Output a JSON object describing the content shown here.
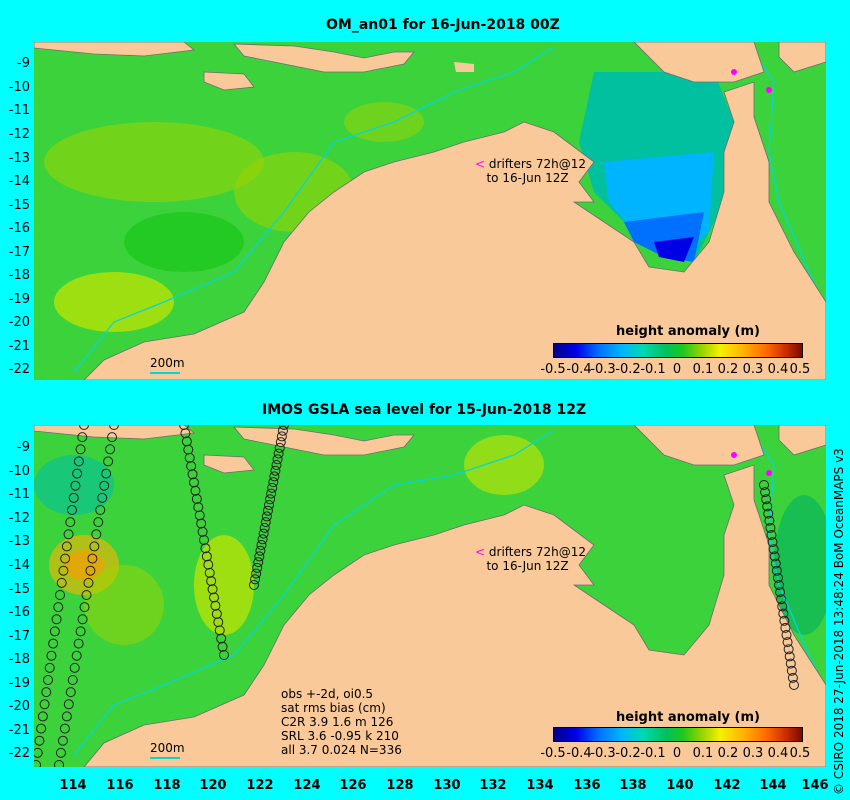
{
  "top_panel": {
    "title": "OM_an01 for 16-Jun-2018 00Z",
    "drifter_note": [
      "drifters 72h@12",
      "to 16-Jun 12Z"
    ],
    "isobath_label": "200m",
    "colorbar_title": "height anomaly (m)"
  },
  "bottom_panel": {
    "title": "IMOS GSLA sea level  for 15-Jun-2018 12Z",
    "drifter_note": [
      "drifters 72h@12",
      "to 16-Jun 12Z"
    ],
    "isobath_label": "200m",
    "colorbar_title": "height anomaly (m)",
    "stats": [
      "obs +-2d, oi0.5",
      "sat rms bias (cm)",
      "C2R   3.9 1.6 m 126",
      "SRL   3.6 -0.95 k 210",
      "all   3.7 0.024 N=336"
    ]
  },
  "y_ticks": [
    "-9",
    "-10",
    "-11",
    "-12",
    "-13",
    "-14",
    "-15",
    "-16",
    "-17",
    "-18",
    "-19",
    "-20",
    "-21",
    "-22"
  ],
  "x_ticks": [
    "114",
    "116",
    "118",
    "120",
    "122",
    "124",
    "126",
    "128",
    "130",
    "132",
    "134",
    "136",
    "138",
    "140",
    "142",
    "144",
    "146"
  ],
  "colorbar_ticks": [
    "-0.5",
    "-0.4",
    "-0.3",
    "-0.2",
    "-0.1",
    "0",
    "0.1",
    "0.2",
    "0.3",
    "0.4",
    "0.5"
  ],
  "credit": "© CSIRO 2018   27-Jun-2018 13:48:24 BoM OceanMAPS v3",
  "colors": {
    "background": "#00ffff",
    "land": "#f9c99a",
    "ocean": "#3cd23c"
  }
}
